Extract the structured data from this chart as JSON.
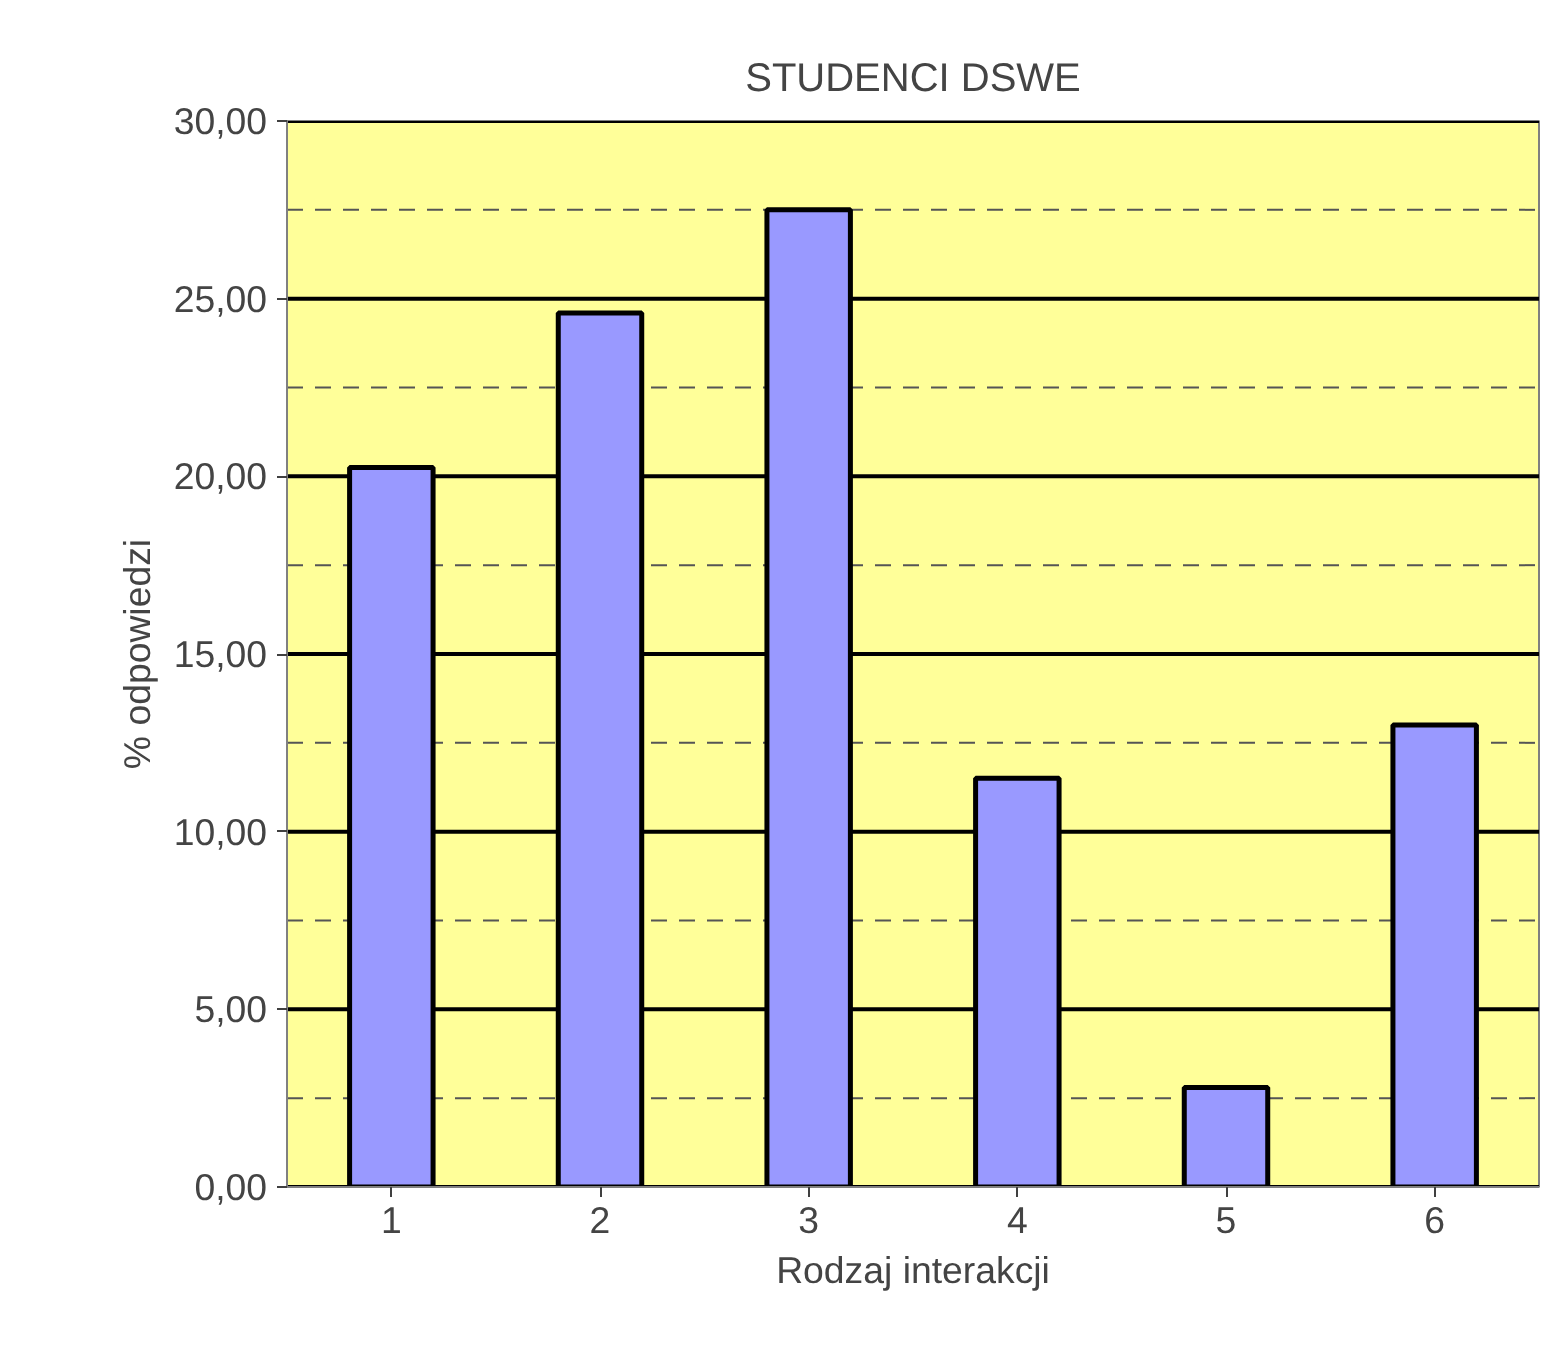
{
  "chart_data": {
    "type": "bar",
    "title": "STUDENCI DSWE",
    "xlabel": "Rodzaj interakcji",
    "ylabel": "% odpowiedzi",
    "categories": [
      "1",
      "2",
      "3",
      "4",
      "5",
      "6"
    ],
    "values": [
      20.25,
      24.6,
      27.5,
      11.5,
      2.8,
      13.0
    ],
    "color": "#9999ff",
    "ylim": [
      0,
      30
    ],
    "yticks": [
      {
        "value": 0,
        "label": "0,00"
      },
      {
        "value": 2.5,
        "label": null
      },
      {
        "value": 5,
        "label": "5,00"
      },
      {
        "value": 7.5,
        "label": null
      },
      {
        "value": 10,
        "label": "10,00"
      },
      {
        "value": 12.5,
        "label": null
      },
      {
        "value": 15,
        "label": "15,00"
      },
      {
        "value": 17.5,
        "label": null
      },
      {
        "value": 20,
        "label": "20,00"
      },
      {
        "value": 22.5,
        "label": null
      },
      {
        "value": 25,
        "label": "25,00"
      },
      {
        "value": 27.5,
        "label": null
      },
      {
        "value": 30,
        "label": "30,00"
      }
    ],
    "grid": "y"
  }
}
